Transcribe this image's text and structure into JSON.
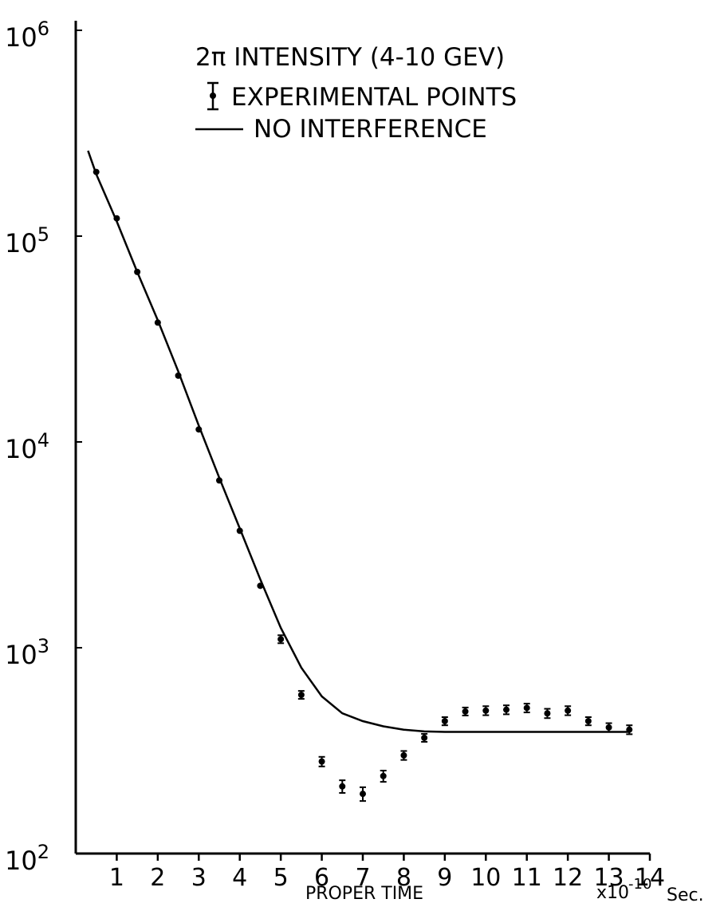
{
  "chart_data": {
    "type": "scatter",
    "title": "2π INTENSITY (4-10 GEV)",
    "legend": [
      {
        "label": "EXPERIMENTAL POINTS",
        "marker": "point-with-error-bar"
      },
      {
        "label": "NO INTERFERENCE",
        "marker": "line"
      }
    ],
    "legend_position": "top-center",
    "xlabel": "PROPER TIME",
    "xunit_label": "x10",
    "xunit_exponent": "-10",
    "xunit_suffix": "Sec.",
    "xlim": [
      0,
      14
    ],
    "x_ticks": [
      1,
      2,
      3,
      4,
      5,
      6,
      7,
      8,
      9,
      10,
      11,
      12,
      13,
      14
    ],
    "x_tick_labels": [
      "1",
      "2",
      "3",
      "4",
      "5",
      "6",
      "7",
      "8",
      "9",
      "10",
      "11",
      "12",
      "13",
      "14"
    ],
    "y_scale": "log",
    "ylim": [
      100,
      1000000
    ],
    "y_ticks": [
      {
        "value": 100,
        "base": "10",
        "exp": "2"
      },
      {
        "value": 1000,
        "base": "10",
        "exp": "3"
      },
      {
        "value": 10000,
        "base": "10",
        "exp": "4"
      },
      {
        "value": 100000,
        "base": "10",
        "exp": "5"
      },
      {
        "value": 1000000,
        "base": "10",
        "exp": "6"
      }
    ],
    "grid": false,
    "series": [
      {
        "name": "EXPERIMENTAL POINTS",
        "x": [
          0.5,
          1.0,
          1.5,
          2.0,
          2.5,
          3.0,
          3.5,
          4.0,
          4.5,
          5.0,
          5.5,
          6.0,
          6.5,
          7.0,
          7.5,
          8.0,
          8.5,
          9.0,
          9.5,
          10.0,
          10.5,
          11.0,
          11.5,
          12.0,
          12.5,
          13.0,
          13.5
        ],
        "y": [
          205000,
          122000,
          67000,
          38000,
          21000,
          11500,
          6500,
          3700,
          2000,
          1100,
          590,
          280,
          212,
          195,
          238,
          300,
          365,
          440,
          490,
          495,
          500,
          510,
          480,
          495,
          440,
          410,
          400
        ],
        "yerr": [
          0,
          0,
          0,
          0,
          0,
          0,
          0,
          0,
          0,
          40,
          20,
          15,
          15,
          15,
          15,
          15,
          15,
          20,
          20,
          25,
          25,
          25,
          25,
          25,
          20,
          20,
          20
        ]
      },
      {
        "name": "NO INTERFERENCE",
        "style": "line",
        "x": [
          0.3,
          0.5,
          1.0,
          1.5,
          2.0,
          2.5,
          3.0,
          3.5,
          4.0,
          4.5,
          5.0,
          5.5,
          6.0,
          6.5,
          7.0,
          7.5,
          8.0,
          8.5,
          9.0,
          10.0,
          11.0,
          12.0,
          13.0,
          13.5
        ],
        "y": [
          260000,
          200000,
          118000,
          67000,
          39000,
          22000,
          12000,
          6700,
          3800,
          2150,
          1250,
          800,
          580,
          480,
          440,
          415,
          400,
          392,
          390,
          390,
          390,
          390,
          390,
          390
        ]
      }
    ]
  }
}
